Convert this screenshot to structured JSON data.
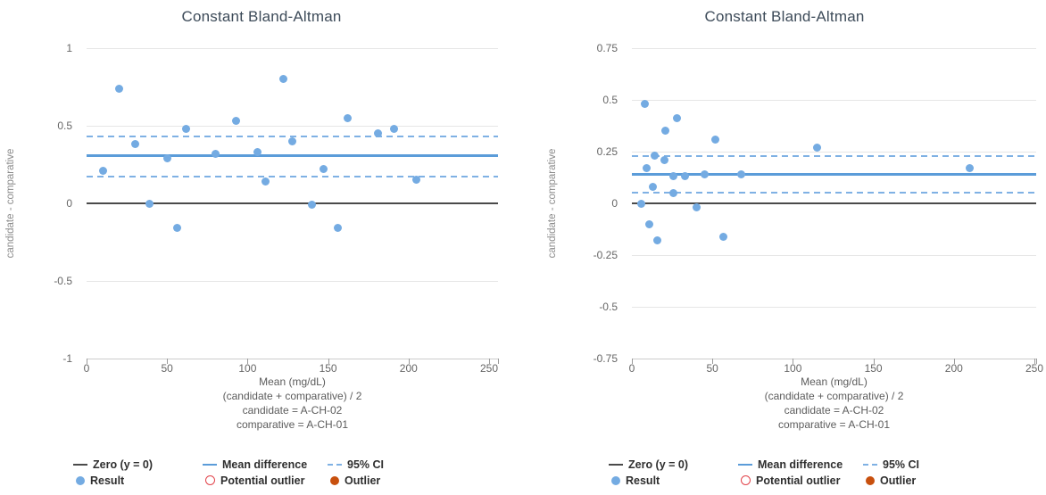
{
  "chart_data": [
    {
      "type": "scatter",
      "title": "Constant Bland-Altman",
      "ylabel": "candidate - comparative",
      "xlabel_lines": [
        "Mean (mg/dL)",
        "(candidate + comparative) / 2",
        "candidate = A-CH-02",
        "comparative = A-CH-01"
      ],
      "xlim": [
        0,
        250
      ],
      "ylim": [
        -1,
        1
      ],
      "xticks": [
        0,
        50,
        100,
        150,
        200,
        250
      ],
      "xtick_labels": [
        "0",
        "50",
        "100",
        "150",
        "200",
        "250"
      ],
      "yticks": [
        1,
        0.5,
        0,
        -0.5,
        -1
      ],
      "ytick_labels": [
        "1",
        "0.5",
        "0",
        "-0.5",
        "-1"
      ],
      "zero_line": 0,
      "mean_difference": 0.31,
      "ci_95": [
        0.17,
        0.43
      ],
      "points": [
        [
          20,
          0.74
        ],
        [
          122,
          0.8
        ],
        [
          162,
          0.55
        ],
        [
          93,
          0.53
        ],
        [
          62,
          0.48
        ],
        [
          191,
          0.48
        ],
        [
          181,
          0.45
        ],
        [
          128,
          0.4
        ],
        [
          30,
          0.38
        ],
        [
          106,
          0.33
        ],
        [
          80,
          0.32
        ],
        [
          50,
          0.29
        ],
        [
          147,
          0.22
        ],
        [
          10,
          0.21
        ],
        [
          205,
          0.15
        ],
        [
          111,
          0.14
        ],
        [
          39,
          0.0
        ],
        [
          140,
          -0.01
        ],
        [
          56,
          -0.16
        ],
        [
          156,
          -0.16
        ]
      ]
    },
    {
      "type": "scatter",
      "title": "Constant Bland-Altman",
      "ylabel": "candidate - comparative",
      "xlabel_lines": [
        "Mean (mg/dL)",
        "(candidate + comparative) / 2",
        "candidate = A-CH-02",
        "comparative = A-CH-01"
      ],
      "xlim": [
        0,
        250
      ],
      "ylim": [
        -0.75,
        0.75
      ],
      "xticks": [
        0,
        50,
        100,
        150,
        200,
        250
      ],
      "xtick_labels": [
        "0",
        "50",
        "100",
        "150",
        "200",
        "250"
      ],
      "yticks": [
        0.75,
        0.5,
        0.25,
        0,
        -0.25,
        -0.5,
        -0.75
      ],
      "ytick_labels": [
        "0.75",
        "0.5",
        "0.25",
        "0",
        "-0.25",
        "-0.5",
        "-0.75"
      ],
      "zero_line": 0,
      "mean_difference": 0.14,
      "ci_95": [
        0.05,
        0.23
      ],
      "points": [
        [
          8,
          0.48
        ],
        [
          28,
          0.41
        ],
        [
          21,
          0.35
        ],
        [
          52,
          0.31
        ],
        [
          115,
          0.27
        ],
        [
          14,
          0.23
        ],
        [
          20,
          0.21
        ],
        [
          9,
          0.17
        ],
        [
          210,
          0.17
        ],
        [
          68,
          0.14
        ],
        [
          45,
          0.14
        ],
        [
          33,
          0.13
        ],
        [
          26,
          0.13
        ],
        [
          13,
          0.08
        ],
        [
          26,
          0.05
        ],
        [
          6,
          0.0
        ],
        [
          40,
          -0.02
        ],
        [
          11,
          -0.1
        ],
        [
          57,
          -0.16
        ],
        [
          16,
          -0.18
        ]
      ]
    }
  ],
  "legend": {
    "rows": [
      [
        {
          "name": "zero-line",
          "label": "Zero (y = 0)",
          "swatch": "line",
          "color": "#4a4a4a"
        },
        {
          "name": "mean-difference",
          "label": "Mean difference",
          "swatch": "line",
          "color": "#5b9cd9"
        },
        {
          "name": "ci-95",
          "label": "95% CI",
          "swatch": "dash",
          "color": "#7fb1e4"
        }
      ],
      [
        {
          "name": "result",
          "label": "Result",
          "swatch": "circle",
          "color": "#74abe2"
        },
        {
          "name": "potential-outlier",
          "label": "Potential outlier",
          "swatch": "open-circle",
          "color": "#e2444b"
        },
        {
          "name": "outlier",
          "label": "Outlier",
          "swatch": "circle",
          "color": "#c8500e"
        }
      ]
    ]
  },
  "colors": {
    "result_point": "#74abe2",
    "mean_line": "#5b9cd9",
    "ci_line": "#7fb1e4",
    "zero_line": "#4a4a4a",
    "gridline": "#e6e6e6",
    "axis_line": "#cccccc",
    "tick_text": "#666666",
    "axis_label_text": "#5c5c5c",
    "y_title_text": "#8b8b8b",
    "title_text": "#3d4b59",
    "legend_text": "#2e2e2e",
    "potential_outlier": "#e2444b",
    "outlier": "#c8500e"
  }
}
